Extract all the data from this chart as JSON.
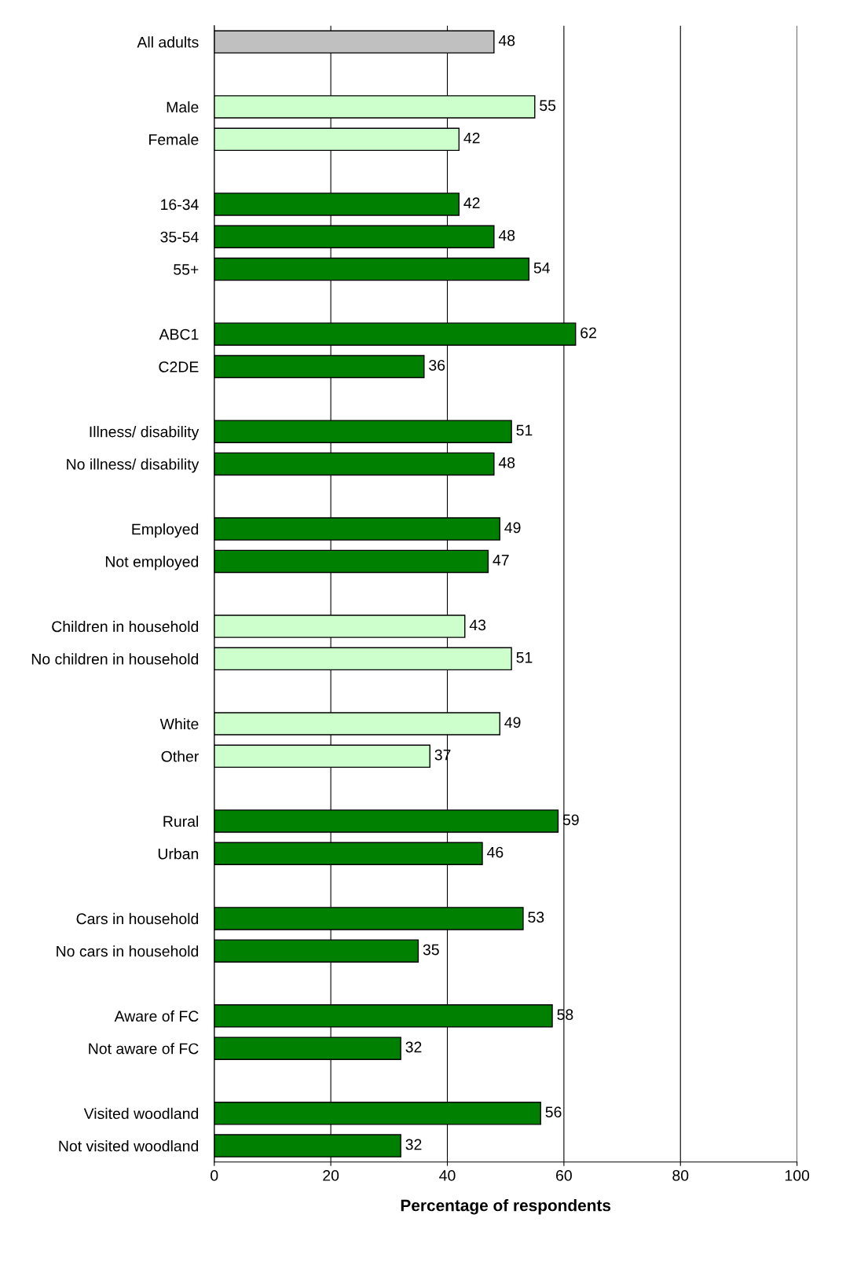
{
  "chart_data": {
    "type": "bar",
    "orientation": "horizontal",
    "xlabel": "Percentage of respondents",
    "categories": [
      "All adults",
      null,
      "Male",
      "Female",
      null,
      "16-34",
      "35-54",
      "55+",
      null,
      "ABC1",
      "C2DE",
      null,
      "Illness/ disability",
      "No illness/ disability",
      null,
      "Employed",
      "Not employed",
      null,
      "Children in household",
      "No children in household",
      null,
      "White",
      "Other",
      null,
      "Rural",
      "Urban",
      null,
      "Cars in household",
      "No cars in household",
      null,
      "Aware of FC",
      "Not aware of FC",
      null,
      "Visited woodland",
      "Not visited woodland"
    ],
    "values": [
      48,
      null,
      55,
      42,
      null,
      42,
      48,
      54,
      null,
      62,
      36,
      null,
      51,
      48,
      null,
      49,
      47,
      null,
      43,
      51,
      null,
      49,
      37,
      null,
      59,
      46,
      null,
      53,
      35,
      null,
      58,
      32,
      null,
      56,
      32
    ],
    "colors": [
      "#c0c0c0",
      null,
      "#ccffcc",
      "#ccffcc",
      null,
      "#008000",
      "#008000",
      "#008000",
      null,
      "#008000",
      "#008000",
      null,
      "#008000",
      "#008000",
      null,
      "#008000",
      "#008000",
      null,
      "#ccffcc",
      "#ccffcc",
      null,
      "#ccffcc",
      "#ccffcc",
      null,
      "#008000",
      "#008000",
      null,
      "#008000",
      "#008000",
      null,
      "#008000",
      "#008000",
      null,
      "#008000",
      "#008000"
    ],
    "xlim": [
      0,
      100
    ],
    "xticks": [
      0,
      20,
      40,
      60,
      80,
      100
    ],
    "grid": "x",
    "data_labels": true
  }
}
